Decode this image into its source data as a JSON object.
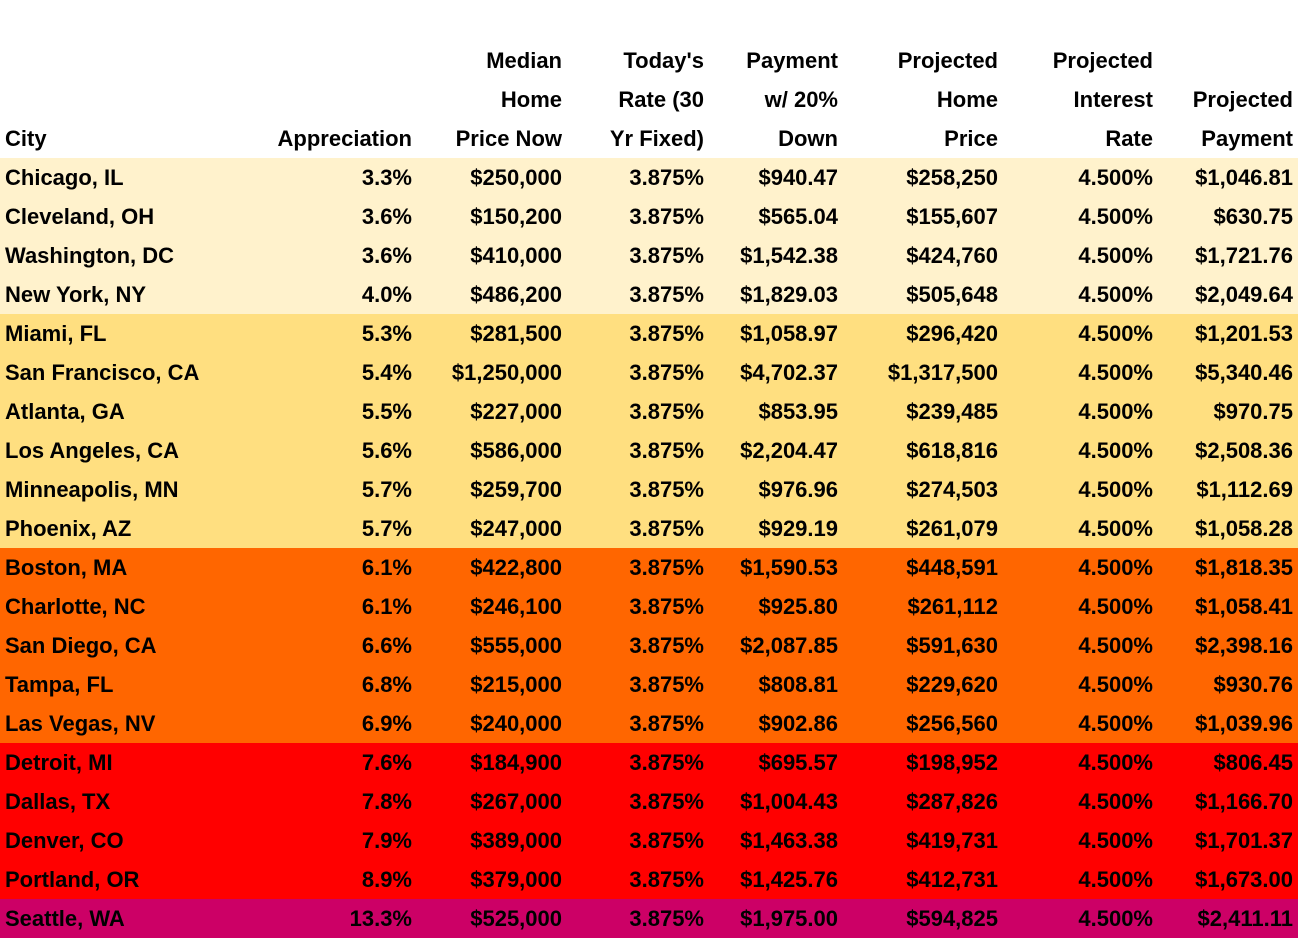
{
  "headers": [
    [
      "City"
    ],
    [
      "Appreciation"
    ],
    [
      "Median",
      "Home",
      "Price Now"
    ],
    [
      "Today's",
      "Rate (30",
      "Yr Fixed)"
    ],
    [
      "Payment",
      "w/ 20%",
      "Down"
    ],
    [
      "Projected",
      "Home",
      "Price"
    ],
    [
      "Projected",
      "Interest",
      "Rate"
    ],
    [
      "Projected",
      "Payment"
    ]
  ],
  "tier_colors": {
    "low": "#FFF2CC",
    "moderate": "#FFDF80",
    "high": "#FF6600",
    "very_high": "#FF0000",
    "extreme": "#CC0066"
  },
  "rows": [
    {
      "tier": "low",
      "cells": [
        "Chicago, IL",
        "3.3%",
        "$250,000",
        "3.875%",
        "$940.47",
        "$258,250",
        "4.500%",
        "$1,046.81"
      ]
    },
    {
      "tier": "low",
      "cells": [
        "Cleveland, OH",
        "3.6%",
        "$150,200",
        "3.875%",
        "$565.04",
        "$155,607",
        "4.500%",
        "$630.75"
      ]
    },
    {
      "tier": "low",
      "cells": [
        "Washington, DC",
        "3.6%",
        "$410,000",
        "3.875%",
        "$1,542.38",
        "$424,760",
        "4.500%",
        "$1,721.76"
      ]
    },
    {
      "tier": "low",
      "cells": [
        "New York, NY",
        "4.0%",
        "$486,200",
        "3.875%",
        "$1,829.03",
        "$505,648",
        "4.500%",
        "$2,049.64"
      ]
    },
    {
      "tier": "moderate",
      "cells": [
        "Miami, FL",
        "5.3%",
        "$281,500",
        "3.875%",
        "$1,058.97",
        "$296,420",
        "4.500%",
        "$1,201.53"
      ]
    },
    {
      "tier": "moderate",
      "cells": [
        "San Francisco, CA",
        "5.4%",
        "$1,250,000",
        "3.875%",
        "$4,702.37",
        "$1,317,500",
        "4.500%",
        "$5,340.46"
      ]
    },
    {
      "tier": "moderate",
      "cells": [
        "Atlanta, GA",
        "5.5%",
        "$227,000",
        "3.875%",
        "$853.95",
        "$239,485",
        "4.500%",
        "$970.75"
      ]
    },
    {
      "tier": "moderate",
      "cells": [
        "Los Angeles, CA",
        "5.6%",
        "$586,000",
        "3.875%",
        "$2,204.47",
        "$618,816",
        "4.500%",
        "$2,508.36"
      ]
    },
    {
      "tier": "moderate",
      "cells": [
        "Minneapolis, MN",
        "5.7%",
        "$259,700",
        "3.875%",
        "$976.96",
        "$274,503",
        "4.500%",
        "$1,112.69"
      ]
    },
    {
      "tier": "moderate",
      "cells": [
        "Phoenix, AZ",
        "5.7%",
        "$247,000",
        "3.875%",
        "$929.19",
        "$261,079",
        "4.500%",
        "$1,058.28"
      ]
    },
    {
      "tier": "high",
      "cells": [
        "Boston, MA",
        "6.1%",
        "$422,800",
        "3.875%",
        "$1,590.53",
        "$448,591",
        "4.500%",
        "$1,818.35"
      ]
    },
    {
      "tier": "high",
      "cells": [
        "Charlotte, NC",
        "6.1%",
        "$246,100",
        "3.875%",
        "$925.80",
        "$261,112",
        "4.500%",
        "$1,058.41"
      ]
    },
    {
      "tier": "high",
      "cells": [
        "San Diego, CA",
        "6.6%",
        "$555,000",
        "3.875%",
        "$2,087.85",
        "$591,630",
        "4.500%",
        "$2,398.16"
      ]
    },
    {
      "tier": "high",
      "cells": [
        "Tampa, FL",
        "6.8%",
        "$215,000",
        "3.875%",
        "$808.81",
        "$229,620",
        "4.500%",
        "$930.76"
      ]
    },
    {
      "tier": "high",
      "cells": [
        "Las Vegas, NV",
        "6.9%",
        "$240,000",
        "3.875%",
        "$902.86",
        "$256,560",
        "4.500%",
        "$1,039.96"
      ]
    },
    {
      "tier": "very_high",
      "cells": [
        "Detroit, MI",
        "7.6%",
        "$184,900",
        "3.875%",
        "$695.57",
        "$198,952",
        "4.500%",
        "$806.45"
      ]
    },
    {
      "tier": "very_high",
      "cells": [
        "Dallas, TX",
        "7.8%",
        "$267,000",
        "3.875%",
        "$1,004.43",
        "$287,826",
        "4.500%",
        "$1,166.70"
      ]
    },
    {
      "tier": "very_high",
      "cells": [
        "Denver, CO",
        "7.9%",
        "$389,000",
        "3.875%",
        "$1,463.38",
        "$419,731",
        "4.500%",
        "$1,701.37"
      ]
    },
    {
      "tier": "very_high",
      "cells": [
        "Portland, OR",
        "8.9%",
        "$379,000",
        "3.875%",
        "$1,425.76",
        "$412,731",
        "4.500%",
        "$1,673.00"
      ]
    },
    {
      "tier": "extreme",
      "cells": [
        "Seattle, WA",
        "13.3%",
        "$525,000",
        "3.875%",
        "$1,975.00",
        "$594,825",
        "4.500%",
        "$2,411.11"
      ]
    }
  ]
}
